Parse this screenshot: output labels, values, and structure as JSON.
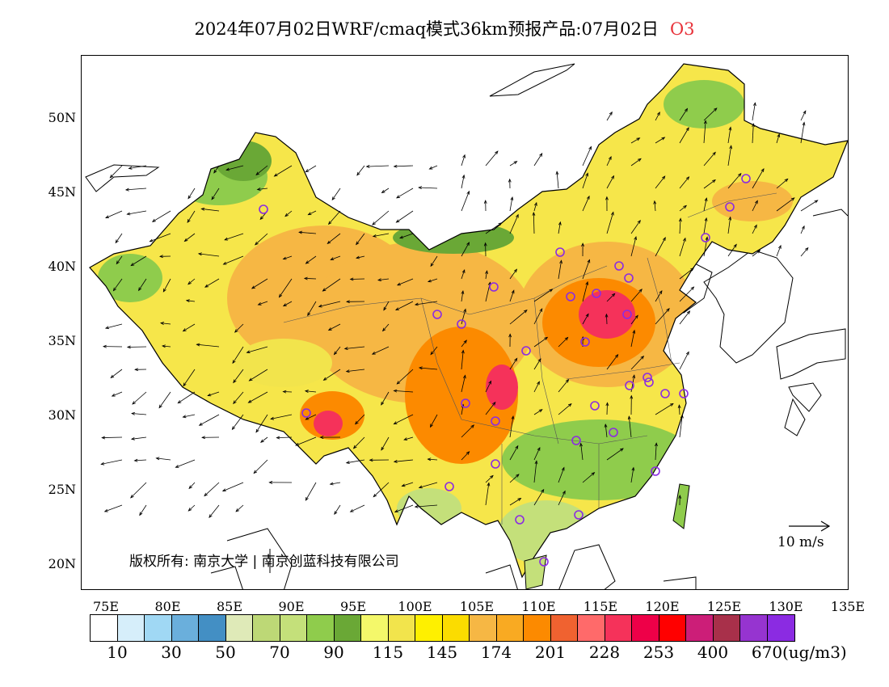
{
  "title": {
    "text": "2024年07月02日WRF/cmaq模式36km预报产品:07月02日",
    "pollutant": "O3"
  },
  "map": {
    "lat_labels": [
      "50N",
      "45N",
      "40N",
      "35N",
      "30N",
      "25N",
      "20N"
    ],
    "lon_labels": [
      "75E",
      "80E",
      "85E",
      "90E",
      "95E",
      "100E",
      "105E",
      "110E",
      "115E",
      "120E",
      "125E",
      "130E",
      "135E"
    ],
    "extent": {
      "lon_min": 73,
      "lon_max": 135,
      "lat_min": 18,
      "lat_max": 54
    },
    "copyright": "版权所有: 南京大学 | 南京创蓝科技有限公司",
    "wind_reference": "10 m/s",
    "station_marker_color": "#8b2be2"
  },
  "colorbar": {
    "colors": [
      "#ffffff",
      "#d6eefa",
      "#a0d8f4",
      "#6aafdc",
      "#438fc4",
      "#dfeab8",
      "#bdd876",
      "#c4e07a",
      "#8fcc4c",
      "#6aa836",
      "#f4f86a",
      "#f2e44c",
      "#fef000",
      "#fbdc00",
      "#f6b744",
      "#f9aa22",
      "#fc8a00",
      "#f06230",
      "#ff6a6a",
      "#f5325a",
      "#ee0048",
      "#ff0000",
      "#cc1e78",
      "#a8304a",
      "#9634d0",
      "#8b2be2"
    ],
    "labels": [
      "10",
      "30",
      "50",
      "70",
      "90",
      "115",
      "145",
      "174",
      "201",
      "228",
      "253",
      "400",
      "670"
    ],
    "unit": "(ug/m3)"
  }
}
